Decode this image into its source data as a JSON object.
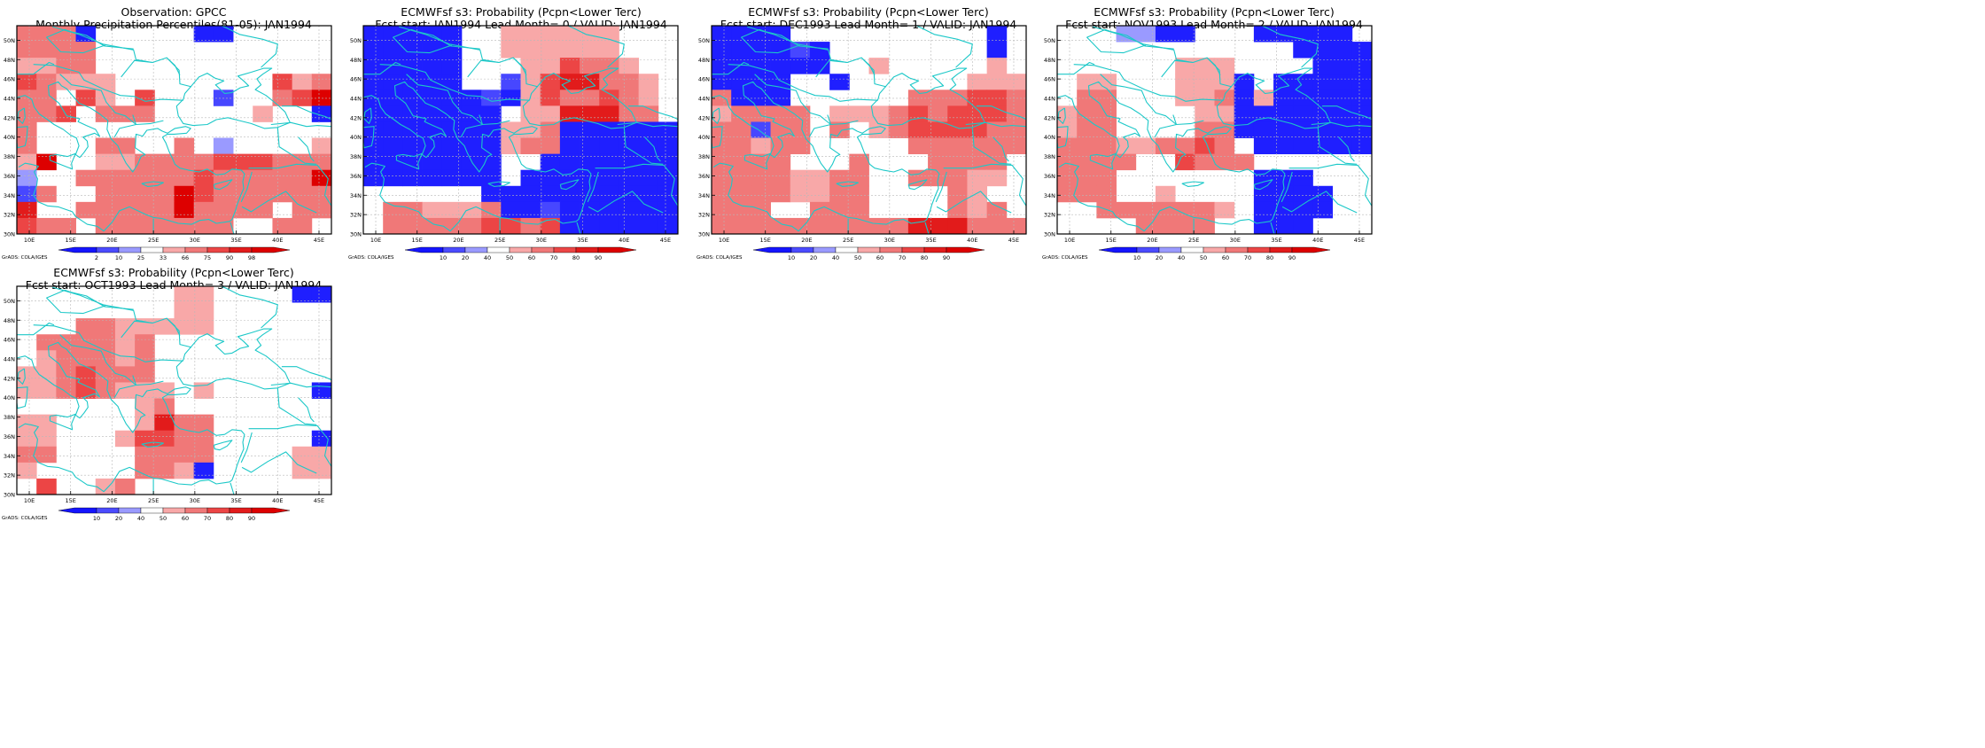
{
  "figure": {
    "credit": "GrADS: COLA/IGES"
  },
  "chart_data": [
    {
      "type": "heatmap",
      "title": "Observation: GPCC",
      "subtitle": "Monthly Precipitation Percentiles(81-05): JAN1994",
      "x_ticks": [
        "10E",
        "15E",
        "20E",
        "25E",
        "30E",
        "35E",
        "40E",
        "45E"
      ],
      "y_ticks": [
        "30N",
        "32N",
        "34N",
        "36N",
        "38N",
        "40N",
        "42N",
        "44N",
        "46N",
        "48N",
        "50N"
      ],
      "xlim": [
        8.5,
        46.5
      ],
      "ylim": [
        30,
        51.5
      ],
      "legend_labels": [
        "2",
        "10",
        "25",
        "33",
        "66",
        "75",
        "90",
        "98"
      ],
      "grid": [
        "5551000001100000",
        "5555000000000000",
        "4455000000000000",
        "6544400000000645",
        "5506406000200568",
        "5560555000004001",
        "5000000000000000",
        "5000550050300004",
        "4800445555666555",
        "3005555556555558",
        "2500555586555555",
        "7005555585555055",
        "6550555555500550"
      ]
    },
    {
      "type": "heatmap",
      "title": "ECMWFsf s3: Probability (Pcpn<Lower Terc)",
      "subtitle": "Fcst start: JAN1994  Lead Month= 0 / VALID: JAN1994",
      "x_ticks": [
        "10E",
        "15E",
        "20E",
        "25E",
        "30E",
        "35E",
        "40E",
        "45E"
      ],
      "y_ticks": [
        "30N",
        "32N",
        "34N",
        "36N",
        "38N",
        "40N",
        "42N",
        "44N",
        "46N",
        "48N",
        "50N"
      ],
      "xlim": [
        8.5,
        46.5
      ],
      "ylim": [
        30,
        51.5
      ],
      "legend_labels": [
        "10",
        "20",
        "40",
        "50",
        "60",
        "70",
        "80",
        "90"
      ],
      "grid": [
        "1111100444444000",
        "1111100444444000",
        "1111100044655400",
        "1111100246775540",
        "1111112146556540",
        "1111111044777550",
        "1111111445111111",
        "1111111455111111",
        "1111111001111111",
        "1111111011111111",
        "0000001111111111",
        "0554445112111111",
        "0555556656111111"
      ]
    },
    {
      "type": "heatmap",
      "title": "ECMWFsf s3: Probability (Pcpn<Lower Terc)",
      "subtitle": "Fcst start: DEC1993  Lead Month= 1 / VALID: JAN1994",
      "x_ticks": [
        "10E",
        "15E",
        "20E",
        "25E",
        "30E",
        "35E",
        "40E",
        "45E"
      ],
      "y_ticks": [
        "30N",
        "32N",
        "34N",
        "36N",
        "38N",
        "40N",
        "42N",
        "44N",
        "46N",
        "48N",
        "50N"
      ],
      "xlim": [
        8.5,
        46.5
      ],
      "ylim": [
        30,
        51.5
      ],
      "legend_labels": [
        "10",
        "20",
        "40",
        "50",
        "60",
        "70",
        "80",
        "90"
      ],
      "grid": [
        "1111000000000010",
        "1111210000000010",
        "1111110040000040",
        "1111001000000444",
        "5111000000555665",
        "4555504445656665",
        "5525505045666655",
        "5545500000555555",
        "5555000500055550",
        "5555445500555440",
        "5555445500005400",
        "5550055500005450",
        "5555555555777555"
      ]
    },
    {
      "type": "heatmap",
      "title": "ECMWFsf s3: Probability (Pcpn<Lower Terc)",
      "subtitle": "Fcst start: NOV1993  Lead Month= 2 / VALID: JAN1994",
      "x_ticks": [
        "10E",
        "15E",
        "20E",
        "25E",
        "30E",
        "35E",
        "40E",
        "45E"
      ],
      "y_ticks": [
        "30N",
        "32N",
        "34N",
        "36N",
        "38N",
        "40N",
        "42N",
        "44N",
        "46N",
        "48N",
        "50N"
      ],
      "xlim": [
        8.5,
        46.5
      ],
      "ylim": [
        30,
        51.5
      ],
      "legend_labels": [
        "10",
        "20",
        "40",
        "50",
        "60",
        "70",
        "80",
        "90"
      ],
      "grid": [
        "0003311000111110",
        "0000000000001111",
        "0000004440000111",
        "0440004441011111",
        "0550004451411111",
        "4550000441111111",
        "4550000551111111",
        "5554455650111111",
        "5555006555000000",
        "5550000000111000",
        "5550040000111100",
        "0055555540111100",
        "0000555500111000"
      ]
    },
    {
      "type": "heatmap",
      "title": "ECMWFsf s3: Probability (Pcpn<Lower Terc)",
      "subtitle": "Fcst start: OCT1993  Lead Month= 3 / VALID: JAN1994",
      "x_ticks": [
        "10E",
        "15E",
        "20E",
        "25E",
        "30E",
        "35E",
        "40E",
        "45E"
      ],
      "y_ticks": [
        "30N",
        "32N",
        "34N",
        "36N",
        "38N",
        "40N",
        "42N",
        "44N",
        "46N",
        "48N",
        "50N"
      ],
      "xlim": [
        8.5,
        46.5
      ],
      "ylim": [
        30,
        51.5
      ],
      "legend_labels": [
        "10",
        "20",
        "40",
        "50",
        "60",
        "70",
        "80",
        "90"
      ],
      "grid": [
        "0000000044000011",
        "0000000044000000",
        "0005544444000000",
        "0555545000000000",
        "0455545000000000",
        "4456555000000000",
        "4456544404000001",
        "0000004500000000",
        "4400004755000000",
        "4400046655000001",
        "5500005555000044",
        "4000005541000044",
        "0600450000000000"
      ]
    }
  ],
  "color_scale": {
    "0": "#ffffff",
    "1": "#1f1fff",
    "2": "#4747ff",
    "3": "#9a9aff",
    "4": "#f8a8a8",
    "5": "#f07878",
    "6": "#ec4545",
    "7": "#e21b1b",
    "8": "#dd0000"
  },
  "legend_colors": [
    "#1414ff",
    "#4b4bff",
    "#9a9aff",
    "#ffffff",
    "#f8a8a8",
    "#f07878",
    "#ec4545",
    "#e21b1b",
    "#dd0000"
  ],
  "coast_color": "#1cc8c8"
}
